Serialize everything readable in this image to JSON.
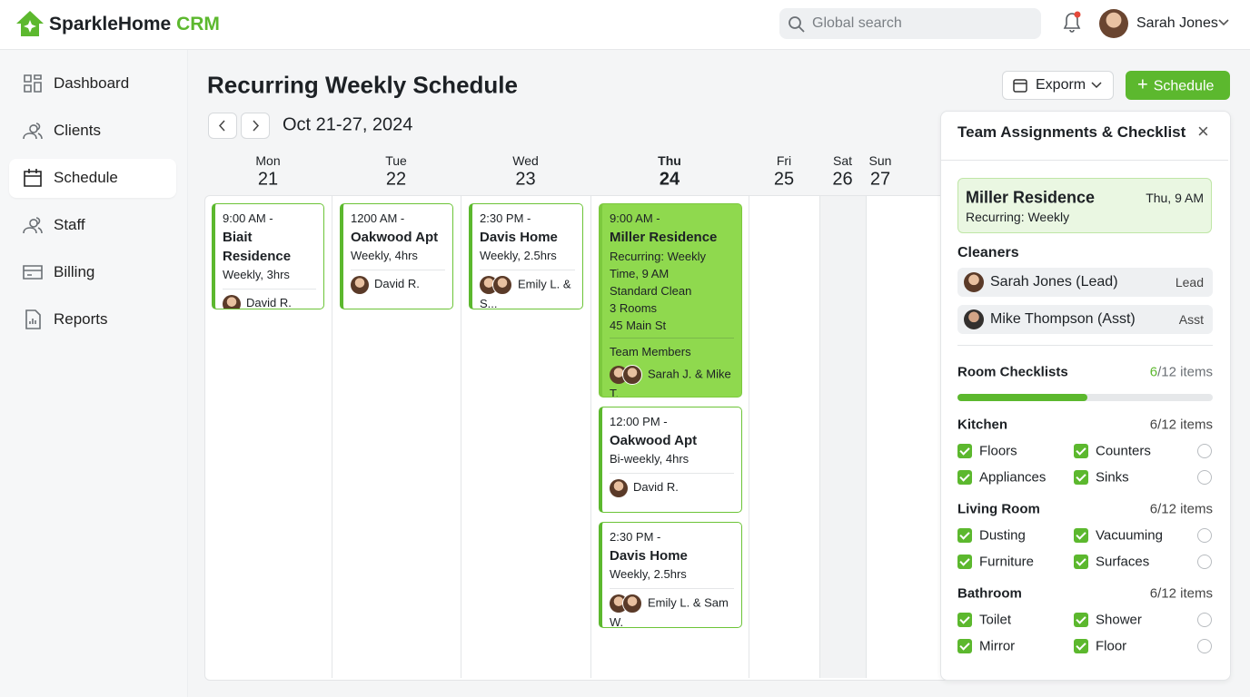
{
  "app": {
    "brand_main": "SparkleHome",
    "brand_accent": "CRM",
    "search_placeholder": "Global search",
    "user": "Sarah Jones"
  },
  "nav": [
    "Dashboard",
    "Clients",
    "Schedule",
    "Staff",
    "Billing",
    "Reports"
  ],
  "page": {
    "title": "Recurring Weekly Schedule",
    "export_button": "Exporm",
    "schedule_button": "Schedule",
    "date_range": "Oct 21-27, 2024"
  },
  "days": [
    {
      "name": "Mon",
      "date": 21
    },
    {
      "name": "Tue",
      "date": 22
    },
    {
      "name": "Wed",
      "date": 23
    },
    {
      "name": "Thu",
      "date": 24
    },
    {
      "name": "Fri",
      "date": 25
    },
    {
      "name": "Sat",
      "date": 26
    },
    {
      "name": "Sun",
      "date": 27
    }
  ],
  "events": [
    {
      "time": "9:00 AM -",
      "title": "Biait Residence",
      "details": [
        "Weekly, 3hrs"
      ],
      "staff": "David R."
    },
    {
      "time": "1200 AM -",
      "title": "Oakwood Apt",
      "details": [
        "Weekly, 4hrs"
      ],
      "staff": "David R."
    },
    {
      "time": "2:30 PM -",
      "title": "Davis Home",
      "details": [
        "Weekly, 2.5hrs"
      ],
      "staff": "Emily L. & S..."
    },
    {
      "time": "9:00 AM -",
      "title": "Miller Residence",
      "details": [
        "Recurring: Weekly",
        "Time, 9 AM",
        "Standard Clean",
        "3 Rooms",
        "45 Main St"
      ],
      "team_label": "Team Members",
      "staff": "Sarah J. & Mike T."
    },
    {
      "time": "12:00 PM -",
      "title": "Oakwood Apt",
      "details": [
        "Bi-weekly, 4hrs"
      ],
      "staff": "David R."
    },
    {
      "time": "2:30 PM -",
      "title": "Davis Home",
      "details": [
        "Weekly, 2.5hrs"
      ],
      "staff": "Emily L. & Sam W."
    }
  ],
  "panel": {
    "title": "Team Assignments & Checklist",
    "summary": {
      "title": "Miller Residence",
      "when": "Thu, 9 AM",
      "recurrence": "Recurring: Weekly"
    },
    "cleaners_label": "Cleaners",
    "cleaners": [
      {
        "name": "Sarah Jones (Lead)",
        "role": "Lead"
      },
      {
        "name": "Mike Thompson (Asst)",
        "role": "Asst"
      }
    ],
    "checklists_label": "Room Checklists",
    "progress_done": "6",
    "progress_rest": "/12 items",
    "rooms": [
      {
        "name": "Kitchen",
        "count": "6/12 items",
        "items": [
          "Floors",
          "Counters",
          "Appliances",
          "Sinks"
        ]
      },
      {
        "name": "Living Room",
        "count": "6/12 items",
        "items": [
          "Dusting",
          "Vacuuming",
          "Furniture",
          "Surfaces"
        ]
      },
      {
        "name": "Bathroom",
        "count": "6/12 items",
        "items": [
          "Toilet",
          "Shower",
          "Mirror",
          "Floor"
        ]
      }
    ]
  }
}
